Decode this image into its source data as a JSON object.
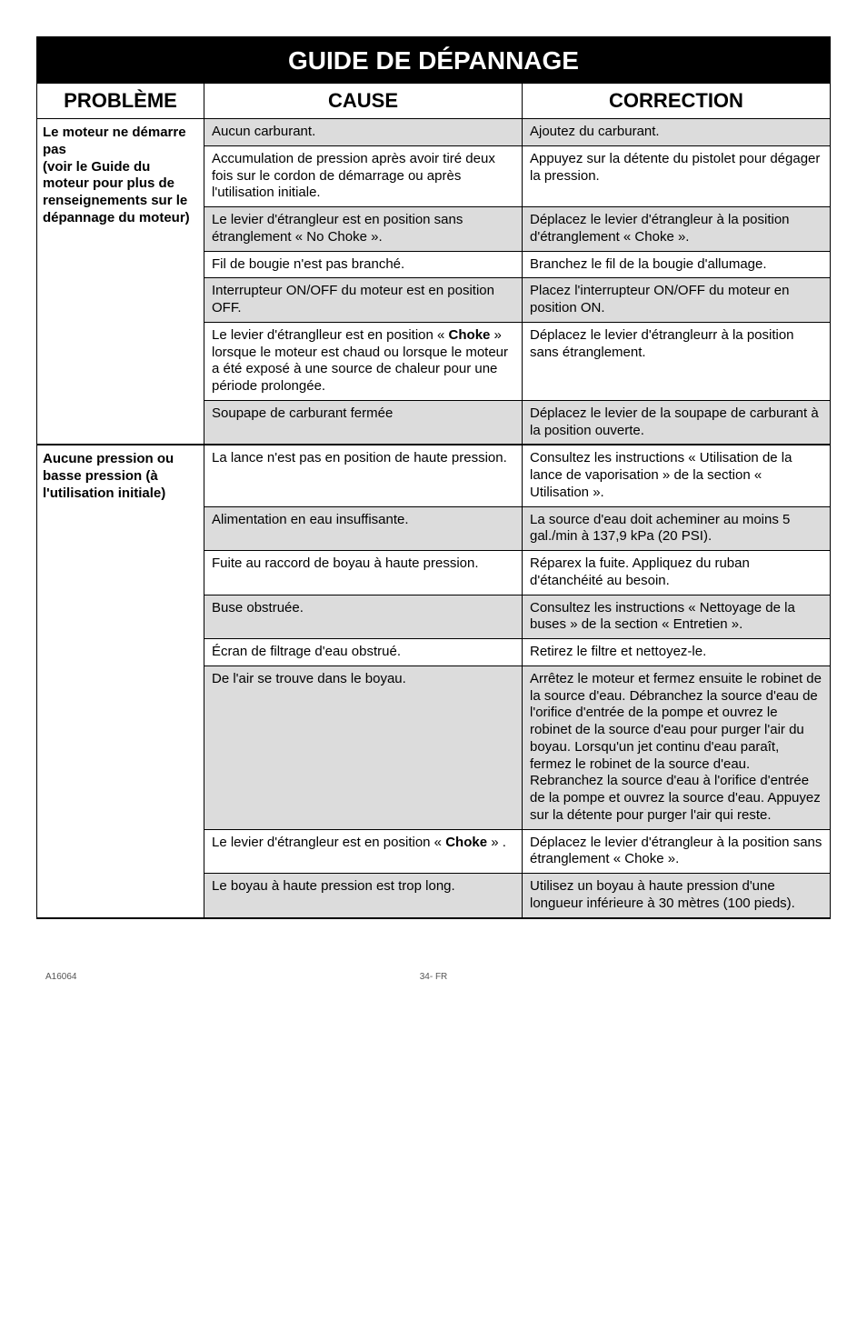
{
  "title": "GUIDE DE DÉPANNAGE",
  "headers": {
    "c1": "PROBLÈME",
    "c2": "CAUSE",
    "c3": "CORRECTION"
  },
  "sections": [
    {
      "problem": "Le moteur ne démarre pas\n(voir le Guide du moteur pour plus de renseignements sur le dépannage du moteur)",
      "rows": [
        {
          "shaded": true,
          "cause": "Aucun carburant.",
          "correction": "Ajoutez du carburant."
        },
        {
          "shaded": false,
          "cause": "Accumulation de pression après avoir tiré deux fois sur le cordon de démarrage ou après l'utilisation initiale.",
          "correction": "Appuyez sur la détente du pistolet pour dégager la pression."
        },
        {
          "shaded": true,
          "cause": "Le levier d'étrangleur est en position sans étranglement « No Choke ».",
          "correction": "Déplacez le levier d'étrangleur à la position d'étranglement « Choke »."
        },
        {
          "shaded": false,
          "cause": "Fil de bougie n'est pas branché.",
          "correction": "Branchez le fil de la bougie d'allumage."
        },
        {
          "shaded": true,
          "cause": "Interrupteur ON/OFF du moteur est en position OFF.",
          "correction": "Placez l'interrupteur ON/OFF du moteur en position ON."
        },
        {
          "shaded": false,
          "cause_html": "Le levier d'étranglleur est en position « <b>Choke</b> »  lorsque le moteur est chaud ou lorsque le moteur a été exposé à une source de chaleur pour une période prolongée.",
          "correction": "Déplacez le levier d'étrangleurr à la position sans étranglement."
        },
        {
          "shaded": true,
          "cause": "Soupape de carburant fermée",
          "correction": "Déplacez le levier de la soupape de carburant à la position ouverte."
        }
      ]
    },
    {
      "problem": "Aucune pression ou basse pression (à l'utilisation initiale)",
      "rows": [
        {
          "shaded": false,
          "cause": "La lance n'est pas en position de haute pression.",
          "correction": "Consultez les instructions « Utilisation de la lance de vaporisation » de la section « Utilisation »."
        },
        {
          "shaded": true,
          "cause": "Alimentation en eau insuffisante.",
          "correction": "La source d'eau doit acheminer au moins 5 gal./min à 137,9 kPa (20 PSI)."
        },
        {
          "shaded": false,
          "cause": "Fuite au raccord de boyau à haute pression.",
          "correction": "Réparex la fuite. Appliquez du ruban d'étanchéité au besoin."
        },
        {
          "shaded": true,
          "cause": "Buse obstruée.",
          "correction": "Consultez les instructions « Nettoyage de la buses » de la section « Entretien »."
        },
        {
          "shaded": false,
          "cause": "Écran de filtrage d'eau obstrué.",
          "correction": "Retirez le filtre et nettoyez-le."
        },
        {
          "shaded": true,
          "cause": "De l'air se trouve dans le boyau.",
          "correction": "Arrêtez le moteur et fermez ensuite le robinet de la source d'eau. Débranchez la source d'eau de l'orifice d'entrée de la pompe et ouvrez le robinet de la source d'eau pour purger l'air du boyau. Lorsqu'un jet continu d'eau paraît, fermez le robinet de la source d'eau. Rebranchez la source d'eau à l'orifice d'entrée de la pompe et ouvrez la source d'eau. Appuyez sur la détente pour purger l'air qui reste."
        },
        {
          "shaded": false,
          "cause_html": "Le levier d'étrangleur est en position « <b>Choke</b> » .",
          "correction": "Déplacez le levier d'étrangleur à la position sans étranglement « Choke »."
        },
        {
          "shaded": true,
          "cause": "Le boyau à haute pression est trop long.",
          "correction": "Utilisez un boyau à haute pression d'une longueur inférieure à 30 mètres (100 pieds)."
        }
      ]
    }
  ],
  "footer": {
    "left": "A16064",
    "center": "34- FR"
  },
  "colors": {
    "shaded": "#dcdcdc",
    "border": "#000000",
    "header_bg": "#000000",
    "header_fg": "#ffffff"
  }
}
